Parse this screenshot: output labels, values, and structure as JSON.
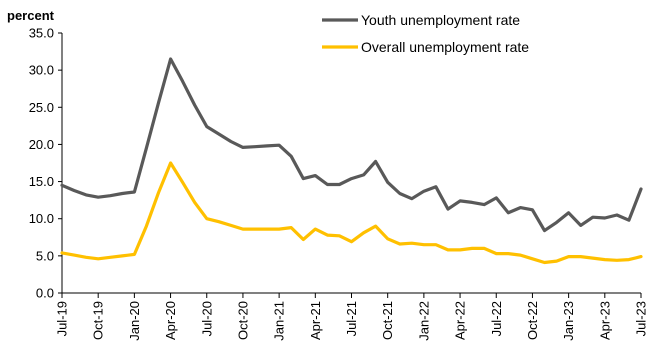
{
  "chart_data": {
    "type": "line",
    "y_unit_label": "percent",
    "ylim": [
      0,
      35
    ],
    "y_ticks": [
      "35.0",
      "30.0",
      "25.0",
      "20.0",
      "15.0",
      "10.0",
      "5.0",
      "0.0"
    ],
    "x": [
      "Jul-19",
      "Aug-19",
      "Sep-19",
      "Oct-19",
      "Nov-19",
      "Dec-19",
      "Jan-20",
      "Feb-20",
      "Mar-20",
      "Apr-20",
      "May-20",
      "Jun-20",
      "Jul-20",
      "Aug-20",
      "Sep-20",
      "Oct-20",
      "Nov-20",
      "Dec-20",
      "Jan-21",
      "Feb-21",
      "Mar-21",
      "Apr-21",
      "May-21",
      "Jun-21",
      "Jul-21",
      "Aug-21",
      "Sep-21",
      "Oct-21",
      "Nov-21",
      "Dec-21",
      "Jan-22",
      "Feb-22",
      "Mar-22",
      "Apr-22",
      "May-22",
      "Jun-22",
      "Jul-22",
      "Aug-22",
      "Sep-22",
      "Oct-22",
      "Nov-22",
      "Dec-22",
      "Jan-23",
      "Feb-23",
      "Mar-23",
      "Apr-23",
      "May-23",
      "Jun-23",
      "Jul-23"
    ],
    "x_tick_labels": [
      "Jul-19",
      "Oct-19",
      "Jan-20",
      "Apr-20",
      "Jul-20",
      "Oct-20",
      "Jan-21",
      "Apr-21",
      "Jul-21",
      "Oct-21",
      "Jan-22",
      "Apr-22",
      "Jul-22",
      "Oct-22",
      "Jan-23",
      "Apr-23",
      "Jul-23"
    ],
    "legend_position": "top-right",
    "grid": false,
    "series": [
      {
        "name": "Youth unemployment rate",
        "color": "#595959",
        "values": [
          14.5,
          13.8,
          13.2,
          12.9,
          13.1,
          13.4,
          13.6,
          19.5,
          25.6,
          31.5,
          28.5,
          25.3,
          22.4,
          21.4,
          20.4,
          19.6,
          19.7,
          19.8,
          19.9,
          18.4,
          15.4,
          15.8,
          14.6,
          14.6,
          15.4,
          15.9,
          17.7,
          14.9,
          13.4,
          12.7,
          13.7,
          14.3,
          11.3,
          12.4,
          12.2,
          11.9,
          12.8,
          10.8,
          11.5,
          11.2,
          8.4,
          9.5,
          10.8,
          9.1,
          10.2,
          10.1,
          10.5,
          9.8,
          14.0
        ]
      },
      {
        "name": "Overall unemployment rate",
        "color": "#FFC000",
        "values": [
          5.4,
          5.1,
          4.8,
          4.6,
          4.8,
          5.0,
          5.2,
          9.0,
          13.5,
          17.5,
          14.9,
          12.2,
          10.0,
          9.6,
          9.1,
          8.6,
          8.6,
          8.6,
          8.6,
          8.8,
          7.2,
          8.6,
          7.8,
          7.7,
          6.9,
          8.1,
          9.0,
          7.3,
          6.6,
          6.7,
          6.5,
          6.5,
          5.8,
          5.8,
          6.0,
          6.0,
          5.3,
          5.3,
          5.1,
          4.6,
          4.1,
          4.3,
          4.9,
          4.9,
          4.7,
          4.5,
          4.4,
          4.5,
          4.9
        ]
      }
    ]
  }
}
